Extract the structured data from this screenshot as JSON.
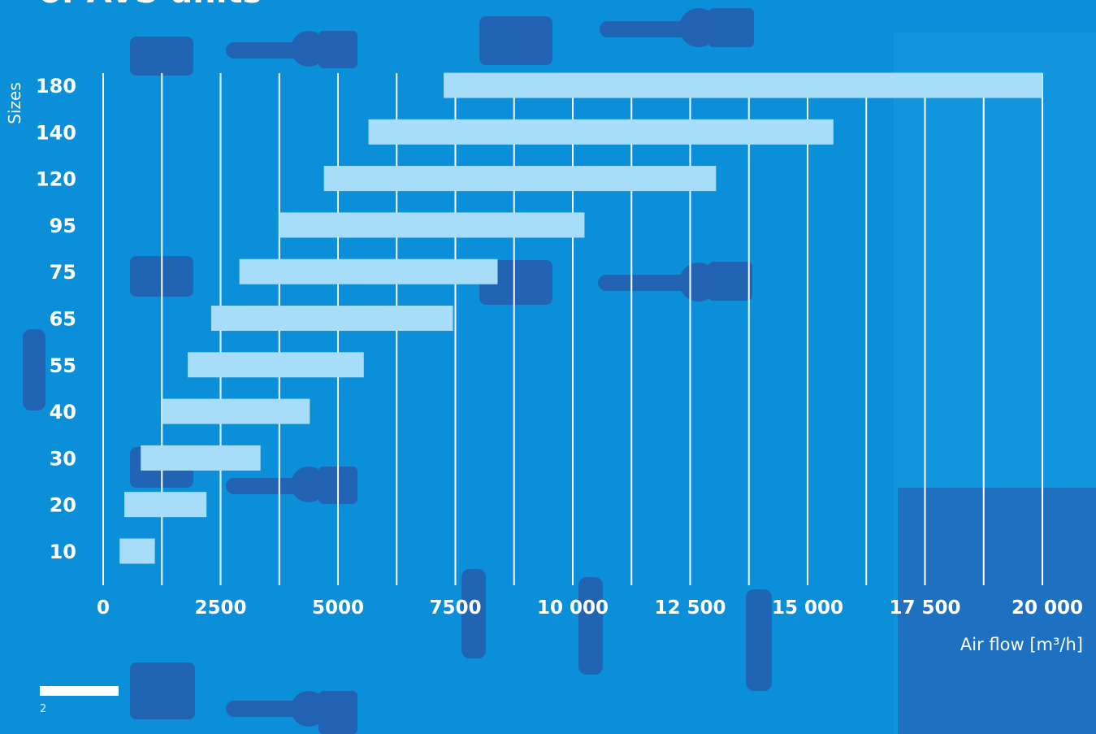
{
  "page": {
    "title_fragment": "of AVS units",
    "number": "2"
  },
  "colors": {
    "background": "#0a8fd8",
    "bar": "#a8ddf9",
    "grid": "#ffffff",
    "text": "#ffffff"
  },
  "chart_data": {
    "type": "bar",
    "orientation": "horizontal",
    "subtype": "range",
    "title": "",
    "ylabel": "Sizes",
    "xlabel": "Air flow [m³/h]",
    "xlim": [
      0,
      20000
    ],
    "grid": true,
    "x_ticks": [
      {
        "value": 0,
        "label": "0"
      },
      {
        "value": 2500,
        "label": "2500"
      },
      {
        "value": 5000,
        "label": "5000"
      },
      {
        "value": 7500,
        "label": "7500"
      },
      {
        "value": 10000,
        "label": "10 000"
      },
      {
        "value": 12500,
        "label": "12 500"
      },
      {
        "value": 15000,
        "label": "15 000"
      },
      {
        "value": 17500,
        "label": "17 500"
      },
      {
        "value": 20000,
        "label": "20 000"
      }
    ],
    "categories": [
      "180",
      "140",
      "120",
      "95",
      "75",
      "65",
      "55",
      "40",
      "30",
      "20",
      "10"
    ],
    "ranges": [
      [
        7250,
        20000
      ],
      [
        5650,
        15550
      ],
      [
        4700,
        13050
      ],
      [
        3750,
        10250
      ],
      [
        2900,
        8400
      ],
      [
        2300,
        7450
      ],
      [
        1800,
        5550
      ],
      [
        1250,
        4400
      ],
      [
        800,
        3350
      ],
      [
        450,
        2200
      ],
      [
        350,
        1100
      ]
    ]
  }
}
